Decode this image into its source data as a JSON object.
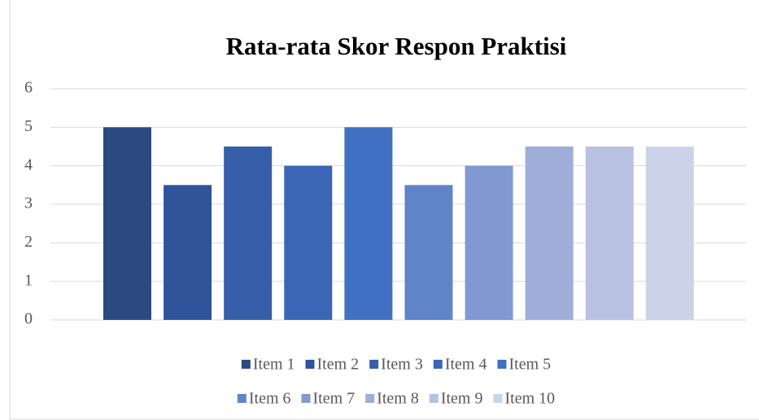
{
  "chart_data": {
    "type": "bar",
    "title": "Rata-rata Skor Respon Praktisi",
    "series": [
      {
        "name": "Item 1",
        "color": "#2b4a82",
        "values": [
          5
        ]
      },
      {
        "name": "Item 2",
        "color": "#30539a",
        "values": [
          3.5
        ]
      },
      {
        "name": "Item 3",
        "color": "#375ea8",
        "values": [
          4.5
        ]
      },
      {
        "name": "Item 4",
        "color": "#3a66b5",
        "values": [
          4
        ]
      },
      {
        "name": "Item 5",
        "color": "#4070c2",
        "values": [
          5
        ]
      },
      {
        "name": "Item 6",
        "color": "#5f84c9",
        "values": [
          3.5
        ]
      },
      {
        "name": "Item 7",
        "color": "#8298d1",
        "values": [
          4
        ]
      },
      {
        "name": "Item 8",
        "color": "#9eaed8",
        "values": [
          4.5
        ]
      },
      {
        "name": "Item 9",
        "color": "#b8c1e1",
        "values": [
          4.5
        ]
      },
      {
        "name": "Item 10",
        "color": "#cbd3e8",
        "values": [
          4.5
        ]
      }
    ],
    "ylim": [
      0,
      6
    ],
    "yticks": [
      0,
      1,
      2,
      3,
      4,
      5,
      6
    ],
    "grid": true,
    "legend": "bottom"
  }
}
